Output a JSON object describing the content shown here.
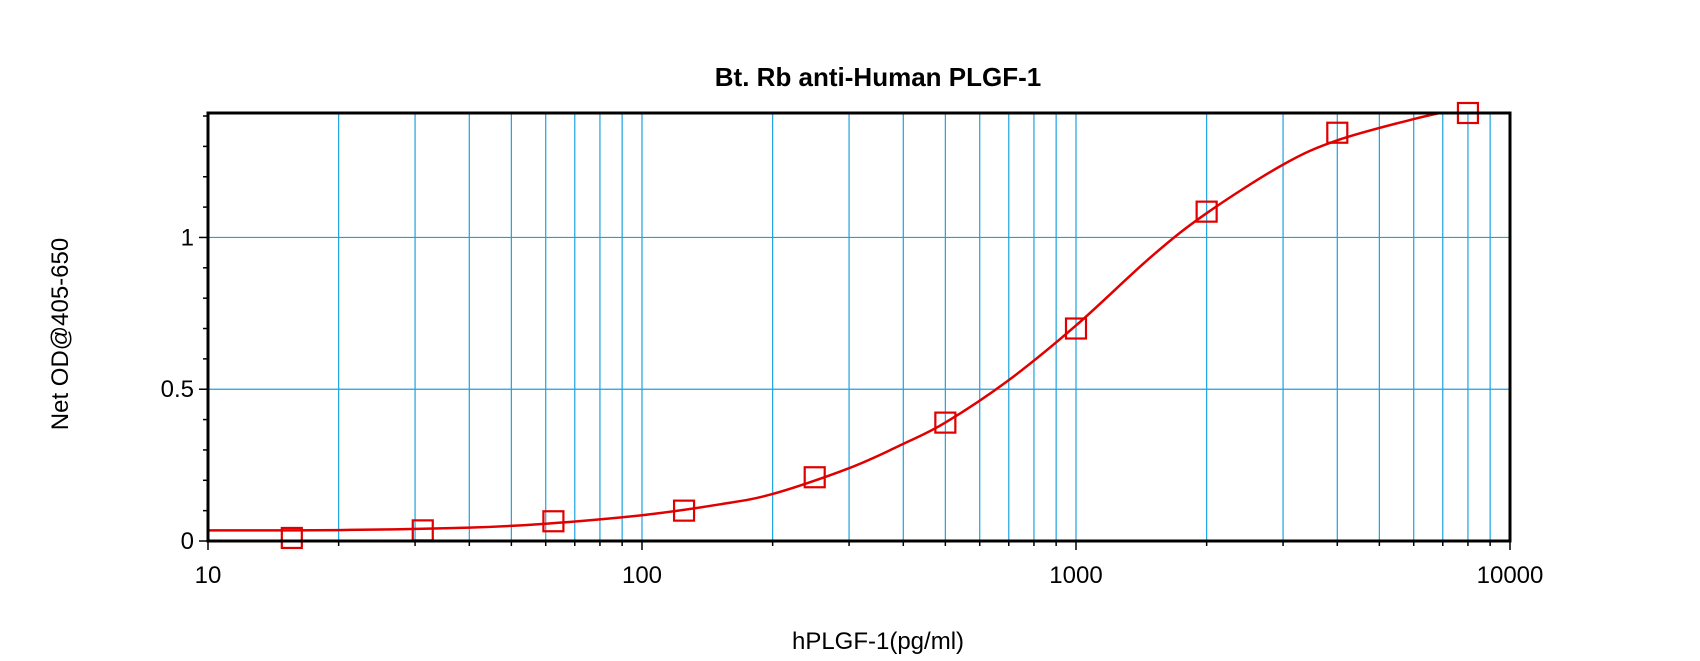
{
  "chart_data": {
    "type": "scatter",
    "title": "Bt. Rb anti-Human PLGF-1",
    "xlabel": "hPLGF-1(pg/ml)",
    "ylabel": "Net OD@405-650",
    "x_scale": "log",
    "xlim": [
      10,
      10000
    ],
    "ylim": [
      0,
      1.41
    ],
    "x_ticks": [
      10,
      100,
      1000,
      10000
    ],
    "x_tick_labels": [
      "10",
      "100",
      "1000",
      "10000"
    ],
    "y_ticks": [
      0,
      0.5,
      1
    ],
    "y_tick_labels": [
      "0",
      "0.5",
      "1"
    ],
    "grid": true,
    "legend": "none",
    "colors": {
      "grid": "#1aa3e0",
      "series": "#e00000",
      "axes": "#000000"
    },
    "series": [
      {
        "marker": "square",
        "x": [
          15.6,
          31.25,
          62.5,
          125,
          250,
          500,
          1000,
          2000,
          4000,
          8000
        ],
        "y": [
          0.01,
          0.035,
          0.065,
          0.1,
          0.21,
          0.39,
          0.7,
          1.085,
          1.345,
          1.41
        ]
      }
    ],
    "fit_curve": {
      "x": [
        10,
        20,
        40,
        60,
        100,
        150,
        200,
        300,
        400,
        500,
        700,
        1000,
        1500,
        2000,
        3000,
        4000,
        6000,
        8000
      ],
      "y": [
        0.035,
        0.036,
        0.044,
        0.057,
        0.085,
        0.12,
        0.155,
        0.24,
        0.32,
        0.39,
        0.53,
        0.71,
        0.94,
        1.08,
        1.24,
        1.32,
        1.39,
        1.43
      ]
    }
  }
}
